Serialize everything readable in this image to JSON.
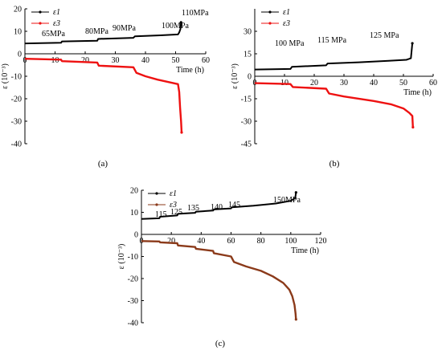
{
  "chart_data": [
    {
      "panel": "(a)",
      "type": "line",
      "xlabel": "Time (h)",
      "ylabel": "ε (10⁻³)",
      "xlim": [
        0,
        60
      ],
      "ylim": [
        -40,
        20
      ],
      "xticks": [
        0,
        10,
        20,
        30,
        40,
        50,
        60
      ],
      "yticks": [
        -40,
        -30,
        -20,
        -10,
        0,
        10,
        20
      ],
      "legend": {
        "position": "top-left",
        "entries": [
          "ε1",
          "ε3"
        ]
      },
      "annotations": [
        "65MPa",
        "80MPa",
        "90MPa",
        "100MPa",
        "110MPa"
      ],
      "series": [
        {
          "name": "ε1",
          "color": "#000000",
          "points": [
            [
              0,
              4.6
            ],
            [
              12,
              4.9
            ],
            [
              12.3,
              5.5
            ],
            [
              24,
              5.8
            ],
            [
              24.3,
              6.6
            ],
            [
              36,
              7.1
            ],
            [
              36.5,
              7.8
            ],
            [
              45,
              8.2
            ],
            [
              50.8,
              8.6
            ],
            [
              51.2,
              9.5
            ],
            [
              51.6,
              11
            ],
            [
              51.8,
              14
            ]
          ]
        },
        {
          "name": "ε3",
          "color": "#ee1111",
          "points": [
            [
              0,
              -2.2
            ],
            [
              12,
              -2.6
            ],
            [
              12.3,
              -3.3
            ],
            [
              24,
              -3.9
            ],
            [
              24.5,
              -5.3
            ],
            [
              36,
              -6.0
            ],
            [
              37,
              -8.5
            ],
            [
              40,
              -10
            ],
            [
              44,
              -11.5
            ],
            [
              50.8,
              -13.5
            ],
            [
              51.2,
              -17
            ],
            [
              51.5,
              -24
            ],
            [
              51.8,
              -30
            ],
            [
              52,
              -35
            ]
          ]
        }
      ]
    },
    {
      "panel": "(b)",
      "type": "line",
      "xlabel": "Time (h)",
      "ylabel": "ε (10⁻³)",
      "xlim": [
        0,
        60
      ],
      "ylim": [
        -45,
        45
      ],
      "xticks": [
        0,
        10,
        20,
        30,
        40,
        50,
        60
      ],
      "yticks": [
        -45,
        -30,
        -15,
        0,
        15,
        30
      ],
      "legend": {
        "position": "top-left",
        "entries": [
          "ε1",
          "ε3"
        ]
      },
      "annotations": [
        "100 MPa",
        "115 MPa",
        "125 MPa"
      ],
      "series": [
        {
          "name": "ε1",
          "color": "#000000",
          "points": [
            [
              0,
              4.5
            ],
            [
              12,
              4.9
            ],
            [
              12.5,
              6.3
            ],
            [
              24,
              7.3
            ],
            [
              24.5,
              8.5
            ],
            [
              35,
              9.3
            ],
            [
              45,
              10.3
            ],
            [
              51,
              11.0
            ],
            [
              52.5,
              12.0
            ],
            [
              53,
              22
            ]
          ]
        },
        {
          "name": "ε3",
          "color": "#ee1111",
          "points": [
            [
              0,
              -4.6
            ],
            [
              12,
              -5.2
            ],
            [
              12.8,
              -7.2
            ],
            [
              24,
              -8.3
            ],
            [
              25,
              -11.5
            ],
            [
              30,
              -13.5
            ],
            [
              40,
              -16.5
            ],
            [
              46,
              -18.8
            ],
            [
              50,
              -21.5
            ],
            [
              52,
              -24.5
            ],
            [
              53,
              -26.5
            ],
            [
              53.2,
              -34
            ]
          ]
        }
      ]
    },
    {
      "panel": "(c)",
      "type": "line",
      "xlabel": "Time (h)",
      "ylabel": "ε (10⁻³)",
      "xlim": [
        0,
        120
      ],
      "ylim": [
        -40,
        20
      ],
      "xticks": [
        0,
        20,
        40,
        60,
        80,
        100,
        120
      ],
      "yticks": [
        -40,
        -30,
        -20,
        -10,
        0,
        10,
        20
      ],
      "legend": {
        "position": "top-left",
        "entries": [
          "ε1",
          "ε3"
        ]
      },
      "annotations": [
        "115",
        "125",
        "135",
        "140",
        "145",
        "150MPa"
      ],
      "series": [
        {
          "name": "ε1",
          "color": "#000000",
          "points": [
            [
              0,
              7.0
            ],
            [
              12,
              7.3
            ],
            [
              12.5,
              8.0
            ],
            [
              24,
              8.6
            ],
            [
              24.5,
              9.3
            ],
            [
              36,
              9.8
            ],
            [
              36.5,
              10.3
            ],
            [
              48,
              10.8
            ],
            [
              48.5,
              11.3
            ],
            [
              60,
              11.8
            ],
            [
              60.5,
              12.3
            ],
            [
              75,
              13
            ],
            [
              90,
              14
            ],
            [
              100,
              15.2
            ],
            [
              103,
              16.5
            ],
            [
              103.5,
              19
            ]
          ]
        },
        {
          "name": "ε3",
          "color": "#8b3a1a",
          "points": [
            [
              0,
              -3.0
            ],
            [
              12,
              -3.2
            ],
            [
              12.5,
              -3.6
            ],
            [
              24,
              -4.0
            ],
            [
              24.5,
              -5.0
            ],
            [
              36,
              -5.7
            ],
            [
              36.5,
              -6.5
            ],
            [
              48,
              -7.5
            ],
            [
              48.5,
              -8.5
            ],
            [
              60,
              -10.0
            ],
            [
              62,
              -12.5
            ],
            [
              70,
              -14.5
            ],
            [
              80,
              -16.5
            ],
            [
              88,
              -19.0
            ],
            [
              95,
              -22
            ],
            [
              99,
              -25
            ],
            [
              101,
              -28
            ],
            [
              102.5,
              -32
            ],
            [
              103.2,
              -36
            ],
            [
              103.5,
              -38.5
            ]
          ]
        }
      ]
    }
  ]
}
